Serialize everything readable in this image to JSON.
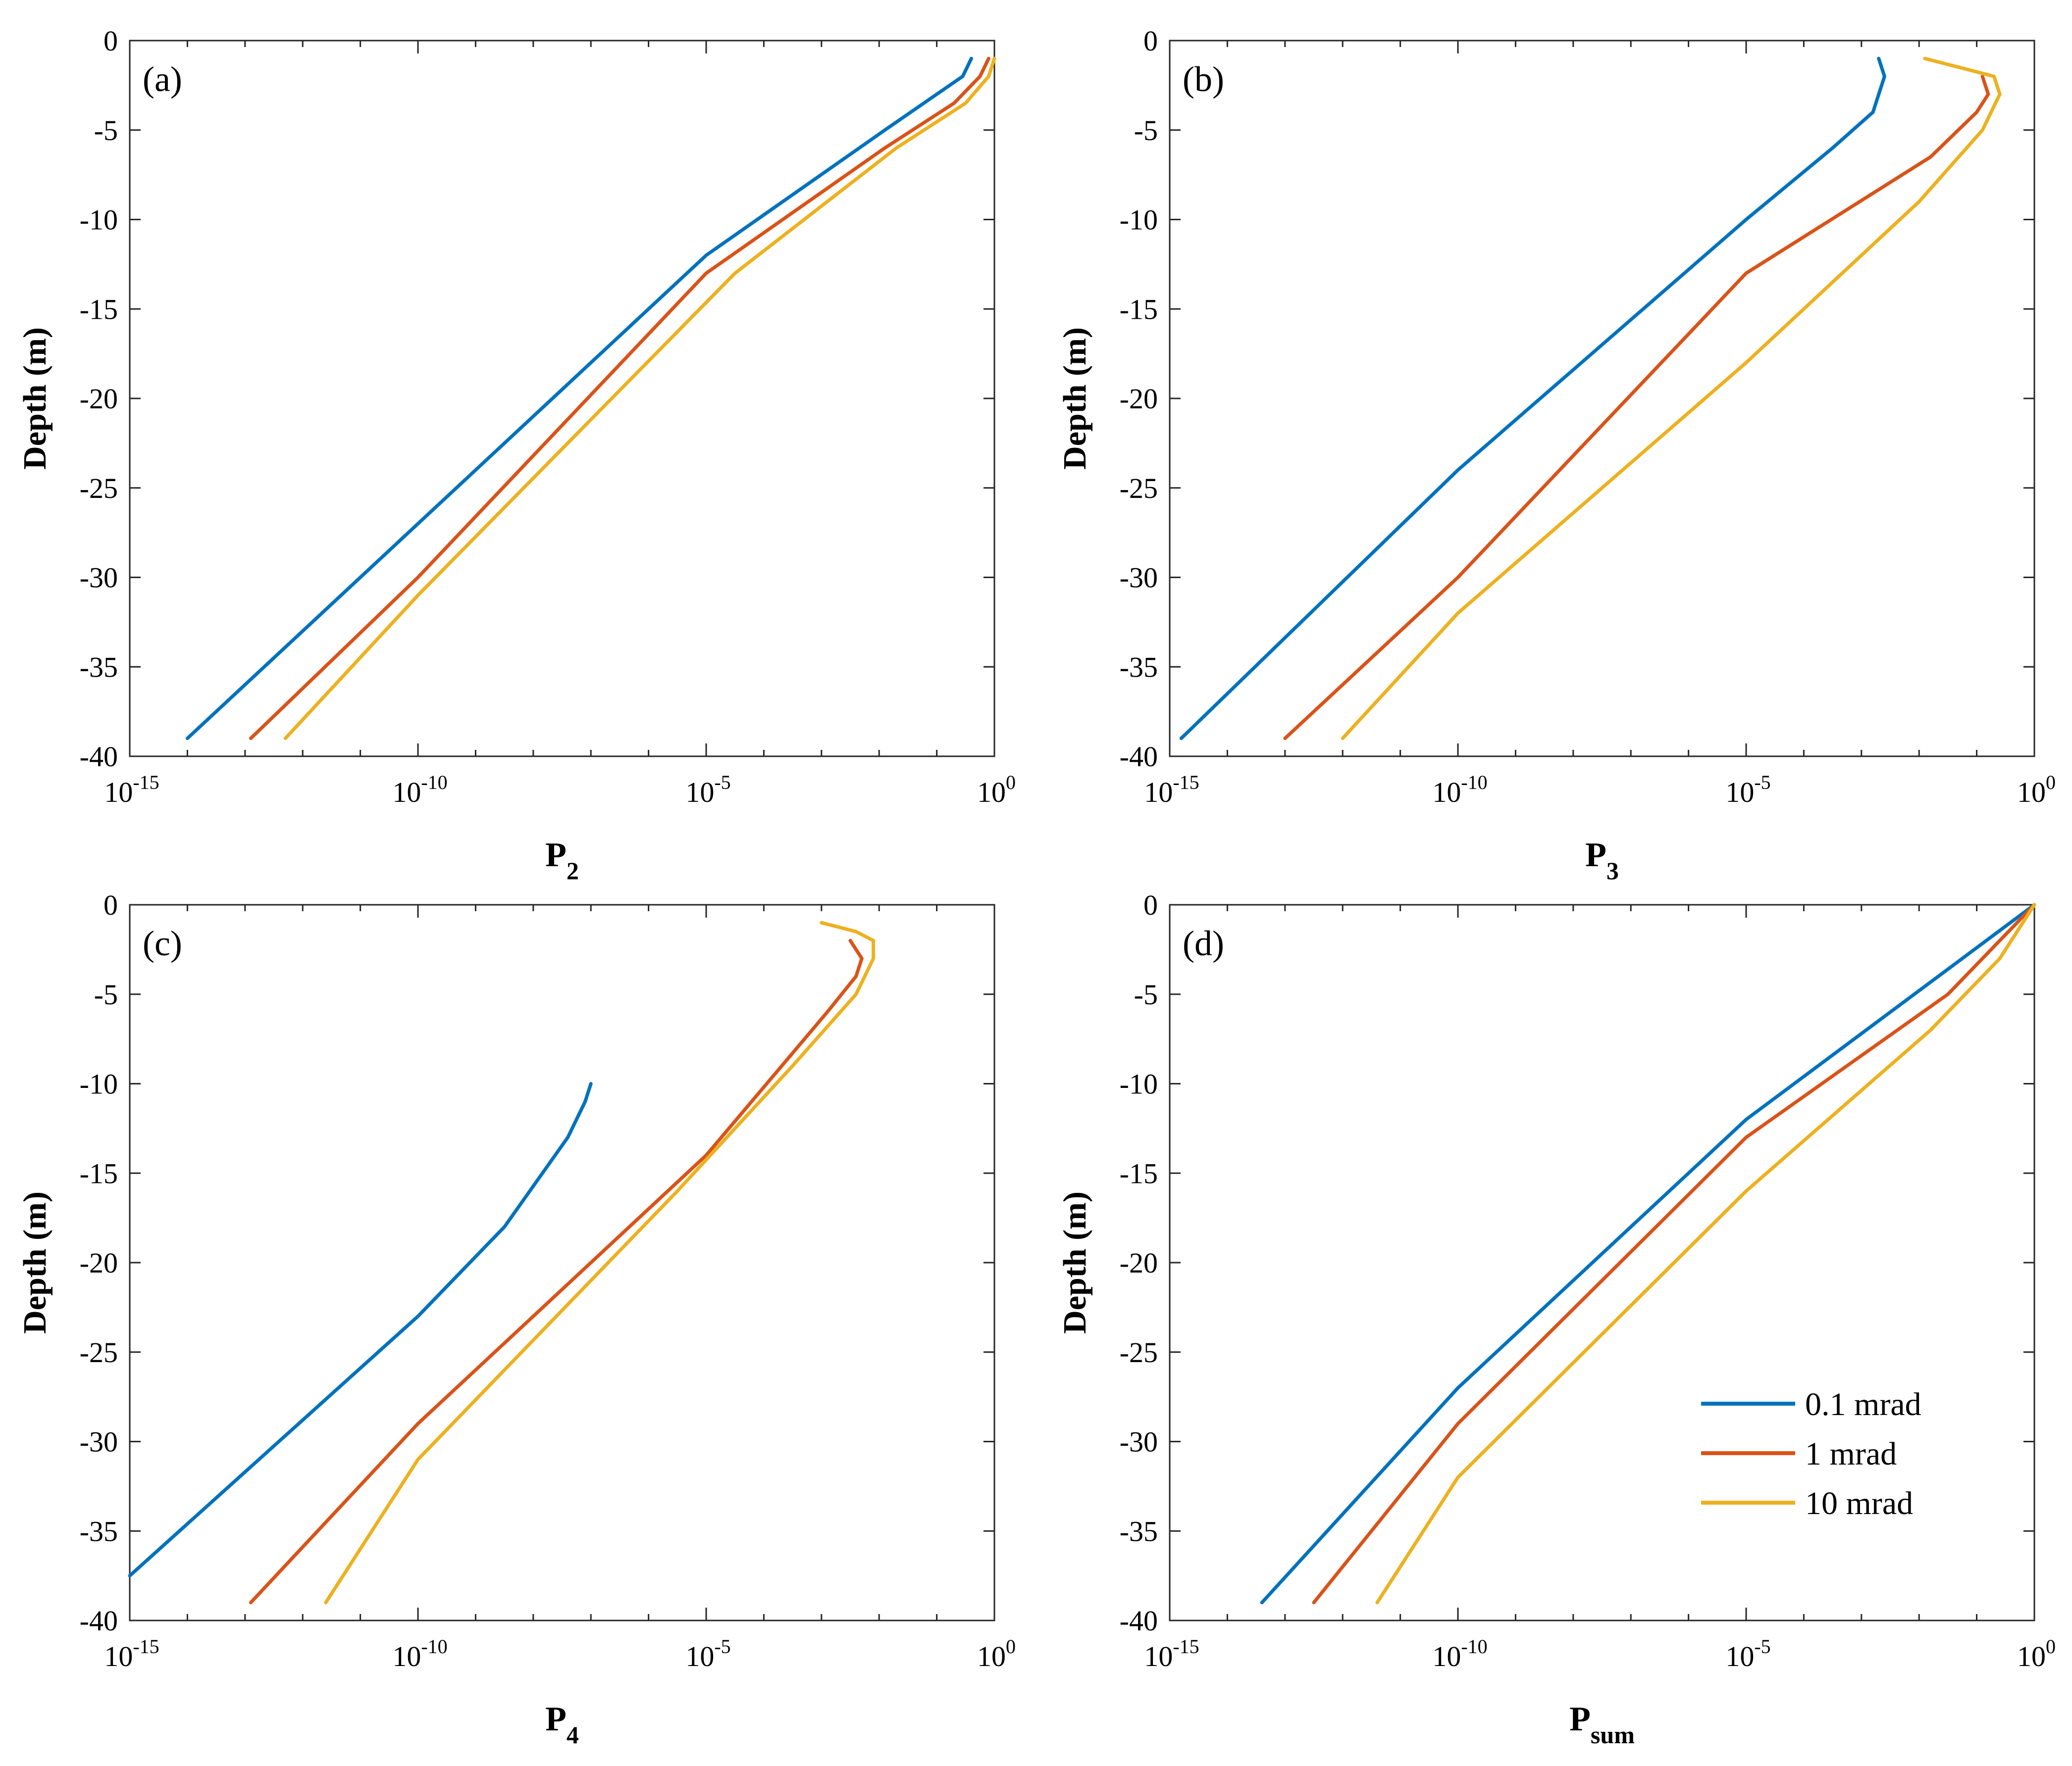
{
  "figure_title": "",
  "legend": {
    "entries": [
      {
        "label": "0.1 mrad",
        "color": "#0072BD"
      },
      {
        "label": "1 mrad",
        "color": "#D95319"
      },
      {
        "label": "10 mrad",
        "color": "#EDB120"
      }
    ]
  },
  "chart_data": [
    {
      "type": "line",
      "panel_label": "(a)",
      "title": "",
      "xlabel": "P",
      "xlabel_sub": "2",
      "ylabel": "Depth (m)",
      "xscale": "log",
      "xlim": [
        -15,
        0
      ],
      "ylim": [
        -40,
        0
      ],
      "xticks": [
        {
          "base": "10",
          "exp": "-15"
        },
        {
          "base": "10",
          "exp": "-10"
        },
        {
          "base": "10",
          "exp": "-5"
        },
        {
          "base": "10",
          "exp": "0"
        }
      ],
      "yticks": [
        "0",
        "-5",
        "-10",
        "-15",
        "-20",
        "-25",
        "-30",
        "-35",
        "-40"
      ],
      "legend_position": "none",
      "series": [
        {
          "name": "0.1 mrad",
          "x_log10": [
            -0.4,
            -0.55,
            -1.0,
            -1.9,
            -5.0,
            -10.0,
            -14.0
          ],
          "depth": [
            -1,
            -2,
            -3,
            -5,
            -12,
            -27,
            -39
          ]
        },
        {
          "name": "1 mrad",
          "x_log10": [
            -0.1,
            -0.25,
            -0.7,
            -1.9,
            -5.0,
            -10.0,
            -12.9
          ],
          "depth": [
            -1,
            -2,
            -3.5,
            -6,
            -13,
            -30,
            -39
          ]
        },
        {
          "name": "10 mrad",
          "x_log10": [
            0.0,
            -0.1,
            -0.5,
            -1.7,
            -4.5,
            -10.0,
            -12.3
          ],
          "depth": [
            -1,
            -2,
            -3.5,
            -6,
            -13,
            -31,
            -39
          ]
        }
      ]
    },
    {
      "type": "line",
      "panel_label": "(b)",
      "title": "",
      "xlabel": "P",
      "xlabel_sub": "3",
      "ylabel": "Depth (m)",
      "xscale": "log",
      "xlim": [
        -15,
        0
      ],
      "ylim": [
        -40,
        0
      ],
      "xticks": [
        {
          "base": "10",
          "exp": "-15"
        },
        {
          "base": "10",
          "exp": "-10"
        },
        {
          "base": "10",
          "exp": "-5"
        },
        {
          "base": "10",
          "exp": "0"
        }
      ],
      "yticks": [
        "0",
        "-5",
        "-10",
        "-15",
        "-20",
        "-25",
        "-30",
        "-35",
        "-40"
      ],
      "legend_position": "none",
      "series": [
        {
          "name": "0.1 mrad",
          "x_log10": [
            -2.7,
            -2.6,
            -2.8,
            -3.5,
            -5.0,
            -10.0,
            -14.8
          ],
          "depth": [
            -1,
            -2,
            -4,
            -6,
            -10,
            -24,
            -39
          ]
        },
        {
          "name": "1 mrad",
          "x_log10": [
            -0.9,
            -0.8,
            -1.0,
            -1.8,
            -5.0,
            -10.0,
            -13.0
          ],
          "depth": [
            -2,
            -3,
            -4,
            -6.5,
            -13,
            -30,
            -39
          ]
        },
        {
          "name": "10 mrad",
          "x_log10": [
            -1.9,
            -1.3,
            -0.7,
            -0.6,
            -0.9,
            -2.0,
            -5.0,
            -10.0,
            -12.0
          ],
          "depth": [
            -1,
            -1.5,
            -2,
            -3,
            -5,
            -9,
            -18,
            -32,
            -39
          ]
        }
      ]
    },
    {
      "type": "line",
      "panel_label": "(c)",
      "title": "",
      "xlabel": "P",
      "xlabel_sub": "4",
      "ylabel": "Depth (m)",
      "xscale": "log",
      "xlim": [
        -15,
        0
      ],
      "ylim": [
        -40,
        0
      ],
      "xticks": [
        {
          "base": "10",
          "exp": "-15"
        },
        {
          "base": "10",
          "exp": "-10"
        },
        {
          "base": "10",
          "exp": "-5"
        },
        {
          "base": "10",
          "exp": "0"
        }
      ],
      "yticks": [
        "0",
        "-5",
        "-10",
        "-15",
        "-20",
        "-25",
        "-30",
        "-35",
        "-40"
      ],
      "legend_position": "none",
      "series": [
        {
          "name": "0.1 mrad",
          "x_log10": [
            -7.0,
            -7.1,
            -7.4,
            -8.5,
            -10.0,
            -15.0
          ],
          "depth": [
            -10,
            -11,
            -13,
            -18,
            -23,
            -37.5
          ]
        },
        {
          "name": "1 mrad",
          "x_log10": [
            -2.5,
            -2.3,
            -2.4,
            -2.9,
            -5.0,
            -10.0,
            -12.9
          ],
          "depth": [
            -2,
            -3,
            -4,
            -6,
            -14,
            -29,
            -39
          ]
        },
        {
          "name": "10 mrad",
          "x_log10": [
            -3.0,
            -2.4,
            -2.1,
            -2.1,
            -2.4,
            -3.5,
            -5.5,
            -10.0,
            -11.6
          ],
          "depth": [
            -1,
            -1.5,
            -2,
            -3,
            -5,
            -9,
            -16,
            -31,
            -39
          ]
        }
      ]
    },
    {
      "type": "line",
      "panel_label": "(d)",
      "title": "",
      "xlabel": "P",
      "xlabel_sub": "sum",
      "ylabel": "Depth (m)",
      "xscale": "log",
      "xlim": [
        -15,
        0
      ],
      "ylim": [
        -40,
        0
      ],
      "xticks": [
        {
          "base": "10",
          "exp": "-15"
        },
        {
          "base": "10",
          "exp": "-10"
        },
        {
          "base": "10",
          "exp": "-5"
        },
        {
          "base": "10",
          "exp": "0"
        }
      ],
      "yticks": [
        "0",
        "-5",
        "-10",
        "-15",
        "-20",
        "-25",
        "-30",
        "-35",
        "-40"
      ],
      "legend_position": "bottom-right",
      "series": [
        {
          "name": "0.1 mrad",
          "x_log10": [
            0.0,
            -5.0,
            -10.0,
            -13.4
          ],
          "depth": [
            0,
            -12,
            -27,
            -39
          ]
        },
        {
          "name": "1 mrad",
          "x_log10": [
            0.0,
            -1.5,
            -5.0,
            -10.0,
            -12.5
          ],
          "depth": [
            0,
            -5,
            -13,
            -29,
            -39
          ]
        },
        {
          "name": "10 mrad",
          "x_log10": [
            0.0,
            -0.6,
            -1.8,
            -5.0,
            -10.0,
            -11.4
          ],
          "depth": [
            0,
            -3,
            -7,
            -16,
            -32,
            -39
          ]
        }
      ]
    }
  ]
}
